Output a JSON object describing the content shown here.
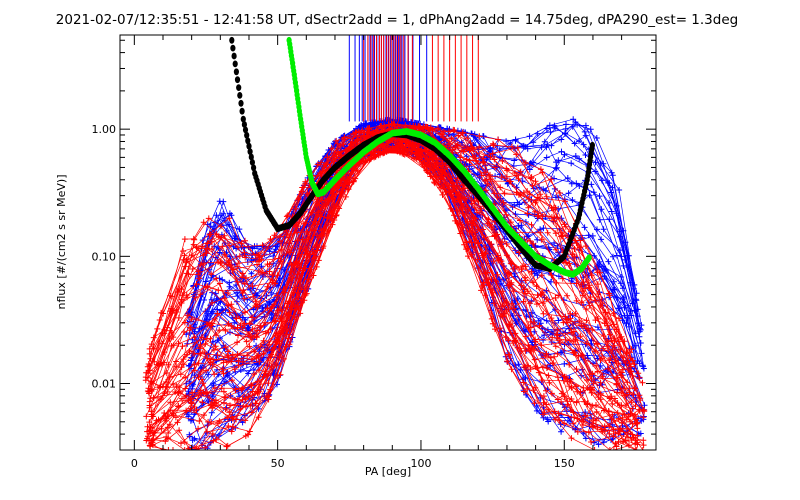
{
  "chart_data": {
    "type": "line",
    "title": "2021-02-07/12:35:51 - 12:41:58 UT, dSectr2add = 1, dPhAng2add = 14.75deg, dPA290_est=   1.3deg",
    "xlabel": "PA [deg]",
    "ylabel": "nflux [#/(cm2 s sr MeV)]",
    "xlim": [
      -5,
      182
    ],
    "ylim": [
      0.003,
      5.5
    ],
    "yscale": "log",
    "x_ticks": [
      0,
      50,
      100,
      150
    ],
    "x_tick_labels": [
      "0",
      "50",
      "100",
      "150"
    ],
    "y_ticks": [
      0.01,
      0.1,
      1.0
    ],
    "y_tick_labels": [
      "0.01",
      "0.10",
      "1.00"
    ],
    "grid": false,
    "legend": "none",
    "colors": {
      "red": "#ff0000",
      "blue": "#0000ff",
      "black": "#000000",
      "green": "#00ee00"
    },
    "series": [
      {
        "color": "black",
        "style": "thick-dotted",
        "x": [
          34,
          38,
          42,
          46,
          50,
          54,
          58,
          62,
          66,
          70,
          75,
          80,
          85,
          90,
          95,
          100,
          105,
          110,
          115,
          120,
          125,
          130,
          135,
          140,
          145,
          150,
          155,
          158,
          160
        ],
        "y": [
          5.0,
          1.2,
          0.45,
          0.23,
          0.165,
          0.175,
          0.22,
          0.3,
          0.4,
          0.5,
          0.62,
          0.75,
          0.86,
          0.92,
          0.9,
          0.82,
          0.7,
          0.55,
          0.4,
          0.3,
          0.22,
          0.16,
          0.115,
          0.085,
          0.08,
          0.1,
          0.2,
          0.4,
          0.8
        ]
      },
      {
        "color": "green",
        "style": "thick-dotted",
        "x": [
          54,
          56,
          58,
          60,
          62,
          64,
          66,
          70,
          75,
          80,
          85,
          90,
          95,
          100,
          105,
          110,
          115,
          120,
          125,
          130,
          135,
          140,
          145,
          150,
          153,
          156,
          159
        ],
        "y": [
          5.0,
          2.5,
          1.2,
          0.6,
          0.38,
          0.31,
          0.32,
          0.4,
          0.52,
          0.66,
          0.8,
          0.93,
          0.96,
          0.9,
          0.78,
          0.62,
          0.47,
          0.34,
          0.24,
          0.17,
          0.13,
          0.1,
          0.085,
          0.075,
          0.072,
          0.08,
          0.1
        ]
      }
    ],
    "envelopes": [
      {
        "color": "red",
        "x": [
          4,
          10,
          20,
          30,
          40,
          50,
          60,
          70,
          80,
          90,
          100,
          110,
          120,
          130,
          140,
          150,
          160,
          170,
          178
        ],
        "y_low": [
          0.003,
          0.003,
          0.003,
          0.003,
          0.004,
          0.01,
          0.05,
          0.2,
          0.55,
          0.7,
          0.55,
          0.25,
          0.06,
          0.015,
          0.006,
          0.004,
          0.003,
          0.003,
          0.003
        ],
        "y_high": [
          0.015,
          0.04,
          0.2,
          0.25,
          0.12,
          0.15,
          0.4,
          0.8,
          1.0,
          1.1,
          1.05,
          1.0,
          0.9,
          0.8,
          0.6,
          0.3,
          0.1,
          0.03,
          0.01
        ]
      },
      {
        "color": "blue",
        "x": [
          18,
          25,
          30,
          40,
          50,
          60,
          70,
          80,
          90,
          100,
          110,
          120,
          130,
          140,
          150,
          160,
          170,
          178
        ],
        "y_low": [
          0.003,
          0.003,
          0.004,
          0.005,
          0.01,
          0.05,
          0.25,
          0.6,
          0.75,
          0.6,
          0.3,
          0.08,
          0.015,
          0.006,
          0.004,
          0.003,
          0.004,
          0.004
        ],
        "y_high": [
          0.03,
          0.18,
          0.3,
          0.12,
          0.12,
          0.4,
          0.8,
          1.1,
          1.2,
          1.1,
          1.0,
          0.9,
          0.8,
          0.9,
          1.3,
          1.0,
          0.3,
          0.02
        ]
      }
    ],
    "vertical_markers": {
      "top": 5.5,
      "bottom": 1.15,
      "red_x": [
        80,
        81.5,
        82.5,
        83.5,
        84.5,
        85.5,
        86.2,
        87,
        88,
        88.8,
        89.6,
        90.5,
        91.3,
        92.2,
        93,
        94,
        95.5,
        97,
        104,
        106,
        108,
        110,
        112,
        114,
        116,
        118,
        120
      ],
      "blue_x": [
        75,
        77,
        78.5,
        79.5,
        80.5,
        81.5,
        82.2,
        83,
        83.8,
        84.6,
        85.4,
        86.2,
        87,
        87.8,
        88.6,
        89.4,
        90.2,
        91,
        91.8,
        92.6,
        93.4,
        94.4,
        95.6,
        97.2,
        99.5,
        102
      ]
    }
  }
}
